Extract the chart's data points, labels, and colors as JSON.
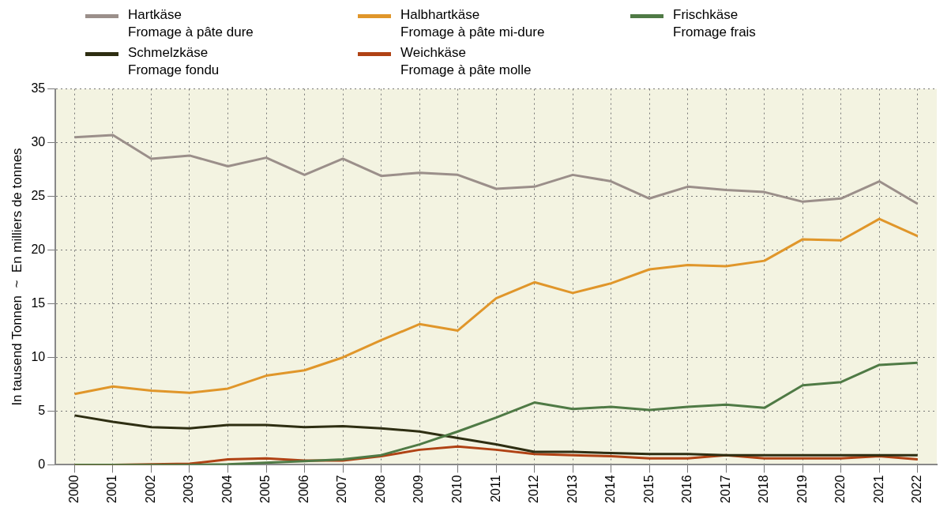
{
  "chart_data": {
    "type": "line",
    "ylabel": "In tausend Tonnen  ~  En milliers de tonnes",
    "categories": [
      "2000",
      "2001",
      "2002",
      "2003",
      "2004",
      "2005",
      "2006",
      "2007",
      "2008",
      "2009",
      "2010",
      "2011",
      "2012",
      "2013",
      "2014",
      "2015",
      "2016",
      "2017",
      "2018",
      "2019",
      "2020",
      "2021",
      "2022"
    ],
    "ylim": [
      0,
      35
    ],
    "yticks": [
      0,
      5,
      10,
      15,
      20,
      25,
      30,
      35
    ],
    "grid": true,
    "legend": "top",
    "marker": "none",
    "line_style": "solid",
    "series": [
      {
        "name": "Hartkäse\nFromage à pâte dure",
        "color": "#9b8f8a",
        "values": [
          30.5,
          30.7,
          28.5,
          28.8,
          27.8,
          28.6,
          27.0,
          28.5,
          26.9,
          27.2,
          27.0,
          25.7,
          25.9,
          27.0,
          26.4,
          24.8,
          25.9,
          25.6,
          25.4,
          24.5,
          24.8,
          26.4,
          24.3
        ]
      },
      {
        "name": "Halbhartkäse\nFromage à pâte mi-dure",
        "color": "#e0962a",
        "values": [
          6.6,
          7.3,
          6.9,
          6.7,
          7.1,
          8.3,
          8.8,
          10.0,
          11.6,
          13.1,
          12.5,
          15.5,
          17.0,
          16.0,
          16.9,
          18.2,
          18.6,
          18.5,
          19.0,
          21.0,
          20.9,
          22.9,
          21.3
        ]
      },
      {
        "name": "Frischkäse\nFromage frais",
        "color": "#4f7a45",
        "values": [
          0,
          0,
          0,
          0,
          0.05,
          0.2,
          0.35,
          0.5,
          0.9,
          1.9,
          3.1,
          4.4,
          5.8,
          5.2,
          5.4,
          5.1,
          5.4,
          5.6,
          5.3,
          7.4,
          7.7,
          9.3,
          9.5
        ]
      },
      {
        "name": "Schmelzkäse\nFromage fondu",
        "color": "#2e2e12",
        "values": [
          4.6,
          4.0,
          3.5,
          3.4,
          3.7,
          3.7,
          3.5,
          3.6,
          3.4,
          3.1,
          2.5,
          1.9,
          1.2,
          1.2,
          1.1,
          1.0,
          1.0,
          0.9,
          0.9,
          0.9,
          0.9,
          0.9,
          0.9
        ]
      },
      {
        "name": "Weichkäse\nFromage à pâte molle",
        "color": "#b04214",
        "values": [
          0,
          0,
          0.05,
          0.1,
          0.5,
          0.6,
          0.4,
          0.4,
          0.8,
          1.4,
          1.7,
          1.4,
          1.0,
          0.9,
          0.8,
          0.6,
          0.6,
          0.9,
          0.6,
          0.6,
          0.6,
          0.8,
          0.5
        ]
      }
    ]
  }
}
